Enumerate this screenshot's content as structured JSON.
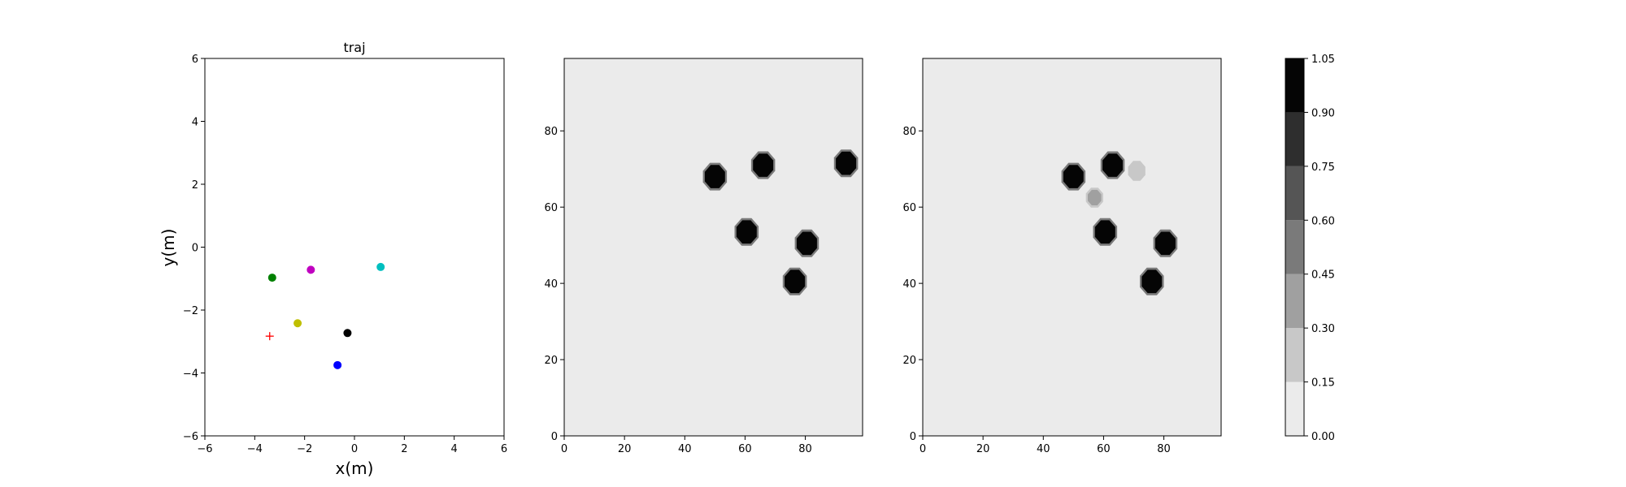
{
  "chart_data": [
    {
      "type": "scatter",
      "title": "traj",
      "xlabel": "x(m)",
      "ylabel": "y(m)",
      "xlim": [
        -6,
        6
      ],
      "ylim": [
        -6,
        6
      ],
      "xticks": [
        "−6",
        "−4",
        "−2",
        "0",
        "2",
        "4",
        "6"
      ],
      "yticks": [
        "−6",
        "−4",
        "−2",
        "0",
        "2",
        "4",
        "6"
      ],
      "grid": false,
      "points": [
        {
          "x": -3.3,
          "y": -0.97,
          "color": "#008000",
          "marker": "circle"
        },
        {
          "x": -1.75,
          "y": -0.72,
          "color": "#c000c0",
          "marker": "circle"
        },
        {
          "x": 1.05,
          "y": -0.63,
          "color": "#00bfbf",
          "marker": "circle"
        },
        {
          "x": -2.28,
          "y": -2.42,
          "color": "#bfbf00",
          "marker": "circle"
        },
        {
          "x": -0.28,
          "y": -2.73,
          "color": "#000000",
          "marker": "circle"
        },
        {
          "x": -0.68,
          "y": -3.75,
          "color": "#0000ff",
          "marker": "circle"
        },
        {
          "x": -3.4,
          "y": -2.83,
          "color": "#ff0000",
          "marker": "plus"
        }
      ]
    },
    {
      "type": "heatmap",
      "xlim": [
        0,
        99
      ],
      "ylim": [
        0,
        99
      ],
      "xticks": [
        "0",
        "20",
        "40",
        "60",
        "80"
      ],
      "yticks": [
        "0",
        "20",
        "40",
        "60",
        "80"
      ],
      "background_level": 0.0,
      "blobs": [
        {
          "x": 50,
          "y": 68,
          "level": 1.0
        },
        {
          "x": 66,
          "y": 71,
          "level": 1.0
        },
        {
          "x": 93.5,
          "y": 71.5,
          "level": 1.0
        },
        {
          "x": 60.5,
          "y": 53.5,
          "level": 1.0
        },
        {
          "x": 80.5,
          "y": 50.5,
          "level": 1.0
        },
        {
          "x": 76.5,
          "y": 40.5,
          "level": 1.0
        }
      ]
    },
    {
      "type": "heatmap",
      "xlim": [
        0,
        99
      ],
      "ylim": [
        0,
        99
      ],
      "xticks": [
        "0",
        "20",
        "40",
        "60",
        "80"
      ],
      "yticks": [
        "0",
        "20",
        "40",
        "60",
        "80"
      ],
      "background_level": 0.0,
      "blobs": [
        {
          "x": 50,
          "y": 68,
          "level": 1.0
        },
        {
          "x": 63,
          "y": 71,
          "level": 1.0
        },
        {
          "x": 60.5,
          "y": 53.5,
          "level": 1.0
        },
        {
          "x": 80.5,
          "y": 50.5,
          "level": 1.0
        },
        {
          "x": 76,
          "y": 40.5,
          "level": 1.0
        },
        {
          "x": 57,
          "y": 62.5,
          "level": 0.3
        },
        {
          "x": 71,
          "y": 69.5,
          "level": 0.2
        }
      ]
    },
    {
      "type": "colorbar",
      "ticks": [
        "0.00",
        "0.15",
        "0.30",
        "0.45",
        "0.60",
        "0.75",
        "0.90",
        "1.05"
      ],
      "levels": [
        0.0,
        0.15,
        0.3,
        0.45,
        0.6,
        0.75,
        0.9,
        1.05
      ],
      "colors": [
        "#ebebeb",
        "#c8c8c8",
        "#a0a0a0",
        "#7a7a7a",
        "#555555",
        "#2e2e2e",
        "#050505"
      ]
    }
  ]
}
